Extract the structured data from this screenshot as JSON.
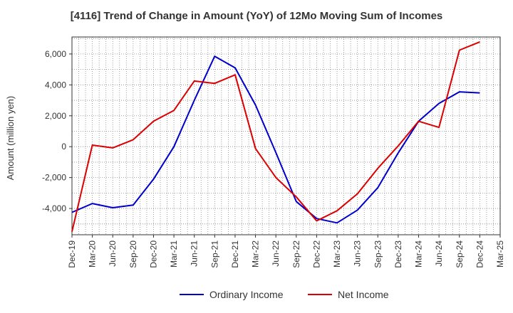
{
  "chart_data": {
    "type": "line",
    "title": "[4116]  Trend of Change in Amount (YoY) of 12Mo Moving Sum of Incomes",
    "xlabel": "",
    "ylabel": "Amount (million yen)",
    "categories": [
      "Dec-19",
      "Mar-20",
      "Jun-20",
      "Sep-20",
      "Dec-20",
      "Mar-21",
      "Jun-21",
      "Sep-21",
      "Dec-21",
      "Mar-22",
      "Jun-22",
      "Sep-22",
      "Dec-22",
      "Mar-23",
      "Jun-23",
      "Sep-23",
      "Dec-23",
      "Mar-24",
      "Jun-24",
      "Sep-24",
      "Dec-24",
      "Mar-25"
    ],
    "yticks": [
      -4000,
      -2000,
      0,
      2000,
      4000,
      6000
    ],
    "ytick_labels": [
      "-4,000",
      "-2,000",
      "0",
      "2,000",
      "4,000",
      "6,000"
    ],
    "ylim": [
      -5700,
      7100
    ],
    "grid": true,
    "legend_position": "bottom-center",
    "series": [
      {
        "name": "Ordinary Income",
        "color": "#0000cc",
        "values": [
          -4250,
          -3680,
          -3950,
          -3780,
          -2100,
          0,
          3000,
          5850,
          5100,
          2700,
          -380,
          -3550,
          -4650,
          -4930,
          -4100,
          -2650,
          -400,
          1650,
          2800,
          3550,
          3480,
          null
        ]
      },
      {
        "name": "Net Income",
        "color": "#dd0000",
        "values": [
          -5500,
          100,
          -80,
          450,
          1650,
          2350,
          4250,
          4100,
          4650,
          -120,
          -2000,
          -3250,
          -4800,
          -4150,
          -3050,
          -1400,
          50,
          1650,
          1250,
          6250,
          6780,
          null
        ]
      }
    ]
  }
}
